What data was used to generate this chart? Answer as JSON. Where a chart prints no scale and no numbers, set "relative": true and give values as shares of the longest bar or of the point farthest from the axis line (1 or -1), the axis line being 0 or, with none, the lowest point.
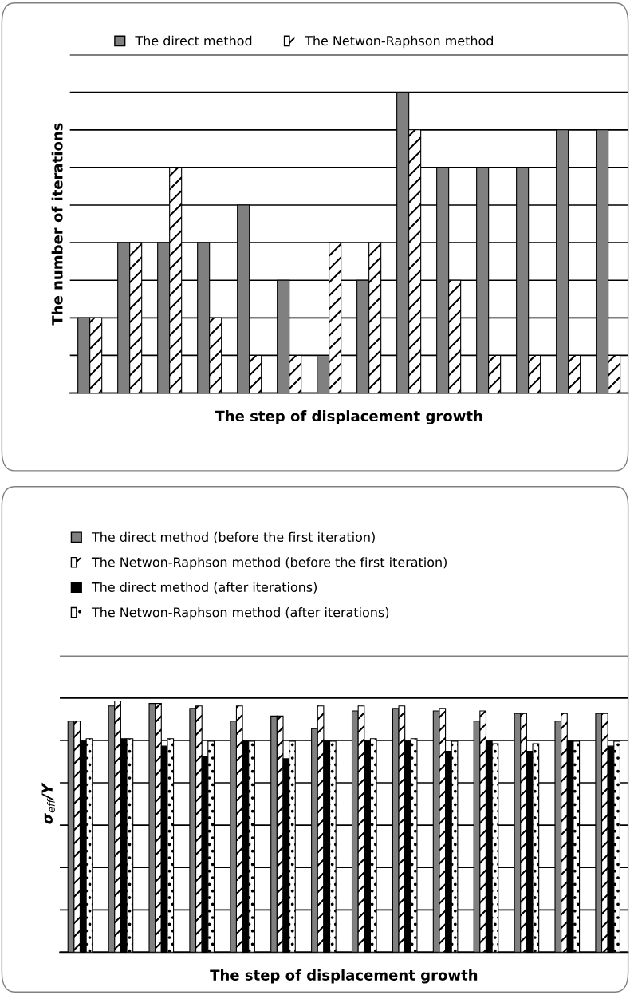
{
  "chart_data": [
    {
      "type": "bar",
      "relative": true,
      "xlabel": "The step of displacement growth",
      "ylabel": "The number of iterations",
      "legend": "top",
      "grid": "y",
      "categories": [
        null,
        null,
        null,
        null,
        null,
        null,
        null,
        null,
        null,
        null,
        null,
        null,
        null,
        null
      ],
      "series": [
        {
          "name": "The direct method",
          "color": "#808080",
          "values": [
            0.25,
            0.5,
            0.5,
            0.5,
            0.625,
            0.375,
            0.125,
            0.375,
            1,
            0.75,
            0.75,
            0.75,
            0.875,
            0.875
          ]
        },
        {
          "name": "The Netwon-Raphson method",
          "color": "#ffffff",
          "values": [
            0.25,
            0.5,
            0.75,
            0.25,
            0.125,
            0.125,
            0.5,
            0.5,
            0.875,
            0.375,
            0.125,
            0.125,
            0.125,
            0.125
          ]
        }
      ]
    },
    {
      "type": "bar",
      "relative": true,
      "xlabel": "The step of displacement growth",
      "ylabel": "σ$_{eff}$/Y",
      "legend": "top",
      "grid": "y",
      "categories": [
        null,
        null,
        null,
        null,
        null,
        null,
        null,
        null,
        null,
        null,
        null,
        null,
        null,
        null
      ],
      "series": [
        {
          "name": "The direct method (before the first iteration)",
          "color": "#808080",
          "values": [
            0.92,
            0.98,
            0.99,
            0.97,
            0.92,
            0.94,
            0.89,
            0.96,
            0.97,
            0.96,
            0.92,
            0.95,
            0.92,
            0.95
          ]
        },
        {
          "name": "The Netwon-Raphson method (before the first iteration)",
          "color": "#ffffff",
          "values": [
            0.92,
            1,
            0.99,
            0.98,
            0.98,
            0.94,
            0.98,
            0.98,
            0.98,
            0.97,
            0.96,
            0.95,
            0.95,
            0.95
          ]
        },
        {
          "name": "The direct method (after iterations)",
          "color": "#000000",
          "values": [
            0.84,
            0.85,
            0.82,
            0.78,
            0.84,
            0.77,
            0.84,
            0.84,
            0.84,
            0.8,
            0.84,
            0.8,
            0.84,
            0.82
          ]
        },
        {
          "name": "The Netwon-Raphson method (after iterations)",
          "color": "#ffffff",
          "values": [
            0.85,
            0.85,
            0.85,
            0.84,
            0.84,
            0.84,
            0.84,
            0.85,
            0.85,
            0.84,
            0.83,
            0.83,
            0.84,
            0.84
          ]
        }
      ]
    }
  ]
}
